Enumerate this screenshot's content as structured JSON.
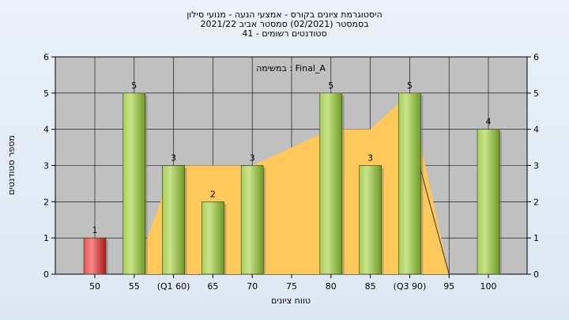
{
  "chart_data": {
    "type": "bar",
    "title_lines": [
      "היסטוגרמת ציונים בקורס - אמצעי הנעה - מנועי סילון",
      "בסמסטר  (02/2021)  סמסטר אביב 2021/22",
      "סטודנטים רשומים - 41"
    ],
    "annotation": "במשימה : Final_A",
    "xlabel": "טווח ציונים",
    "ylabel": "מספר סטודנטים",
    "categories": [
      "50",
      "55",
      "(Q1 60)",
      "65",
      "70",
      "75",
      "80",
      "85",
      "(Q3 90)",
      "95",
      "100"
    ],
    "values": [
      1,
      5,
      3,
      2,
      3,
      0,
      5,
      3,
      5,
      0,
      4
    ],
    "bar_colors": [
      "red",
      "green",
      "green",
      "green",
      "green",
      "green",
      "green",
      "green",
      "green",
      "green",
      "green"
    ],
    "data_labels": [
      "1",
      "5",
      "3",
      "",
      "3",
      "",
      "5",
      "3",
      "5",
      "",
      "4"
    ],
    "data_labels_v2": [
      "1",
      "5",
      "3",
      "2",
      "3",
      "",
      "5",
      "3",
      "5",
      "",
      "4"
    ],
    "ylim": [
      0,
      6
    ],
    "yticks": [
      "0",
      "1",
      "2",
      "3",
      "4",
      "5",
      "6"
    ],
    "area_series": [
      0,
      0,
      3,
      3,
      3,
      3.5,
      4,
      4,
      5,
      0,
      0
    ],
    "line_series": [
      null,
      null,
      null,
      null,
      null,
      null,
      null,
      null,
      4,
      0,
      null
    ],
    "grid": true,
    "colors": {
      "red_bar": "#d42a2a",
      "green_bar": "#8fbb3a",
      "area": "#ffc85a",
      "plot_bg": "#c0c0c0"
    }
  }
}
